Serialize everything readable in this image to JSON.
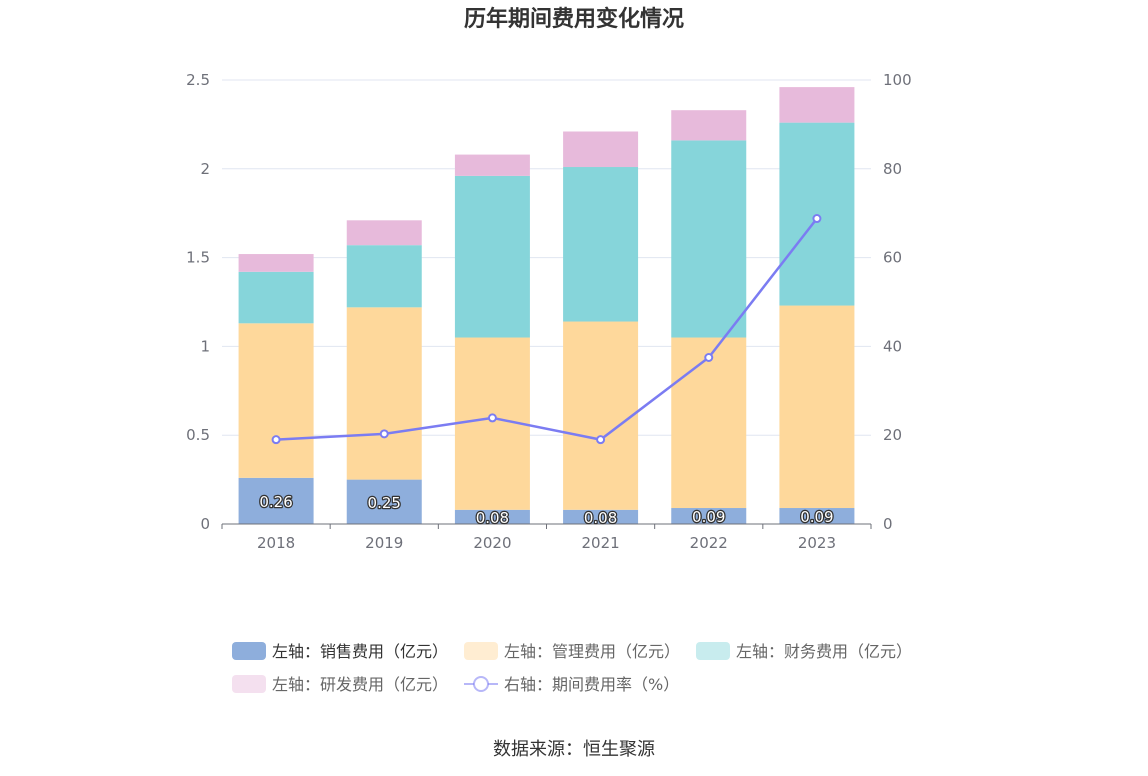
{
  "chart_data": {
    "type": "bar",
    "stacked": true,
    "title": "历年期间费用变化情况",
    "categories": [
      "2018",
      "2019",
      "2020",
      "2021",
      "2022",
      "2023"
    ],
    "left_axis": {
      "ylim": [
        0,
        2.5
      ],
      "ticks": [
        "0",
        "0.5",
        "1",
        "1.5",
        "2",
        "2.5"
      ]
    },
    "right_axis": {
      "ylim": [
        0,
        100
      ],
      "ticks": [
        "0",
        "20",
        "40",
        "60",
        "80",
        "100"
      ]
    },
    "series": [
      {
        "name": "左轴：销售费用（亿元）",
        "axis": "left",
        "kind": "bar",
        "color": "#8eaedc",
        "values": [
          0.26,
          0.25,
          0.08,
          0.08,
          0.09,
          0.09
        ],
        "labels": [
          "0.26",
          "0.25",
          "0.08",
          "0.08",
          "0.09",
          "0.09"
        ]
      },
      {
        "name": "左轴：管理费用（亿元）",
        "axis": "left",
        "kind": "bar",
        "color": "#fed89b",
        "values": [
          0.87,
          0.97,
          0.97,
          1.06,
          0.96,
          1.14
        ]
      },
      {
        "name": "左轴：财务费用（亿元）",
        "axis": "left",
        "kind": "bar",
        "color": "#86d5da",
        "values": [
          0.29,
          0.35,
          0.91,
          0.87,
          1.11,
          1.03
        ]
      },
      {
        "name": "左轴：研发费用（亿元）",
        "axis": "left",
        "kind": "bar",
        "color": "#e7badb",
        "values": [
          0.1,
          0.14,
          0.12,
          0.2,
          0.17,
          0.2
        ]
      },
      {
        "name": "右轴：期间费用率（%）",
        "axis": "right",
        "kind": "line",
        "color": "#7b7cf2",
        "values": [
          19.0,
          20.3,
          23.9,
          19.0,
          37.5,
          68.8
        ]
      }
    ],
    "legend_position": "bottom"
  },
  "source": "数据来源：恒生聚源"
}
